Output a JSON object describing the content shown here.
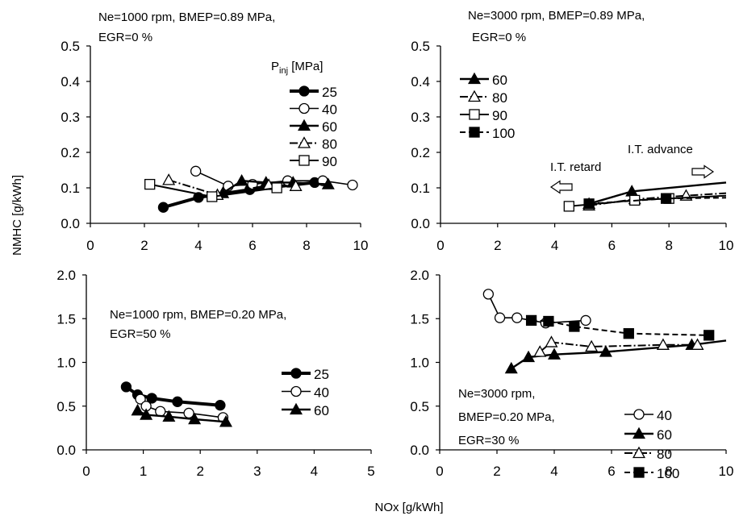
{
  "figure": {
    "ylabel": "NMHC [g/kWh]",
    "xlabel": "NOx [g/kWh]"
  },
  "chart_data": [
    {
      "type": "line",
      "annotations": [
        "Ne=1000 rpm, BMEP=0.89 MPa,",
        "EGR=0 %"
      ],
      "legend_title_main": "P",
      "legend_title_sub": "inj",
      "legend_title_unit": " [MPa]",
      "legend_position": "top-right",
      "xlim": [
        0,
        10
      ],
      "ylim": [
        0,
        0.5
      ],
      "xticks": [
        0,
        2,
        4,
        6,
        8,
        10
      ],
      "yticks": [
        0,
        0.1,
        0.2,
        0.3,
        0.4,
        0.5
      ],
      "xtick_labels": [
        "0",
        "2",
        "4",
        "6",
        "8",
        "10"
      ],
      "ytick_labels": [
        "0.0",
        "0.1",
        "0.2",
        "0.3",
        "0.4",
        "0.5"
      ],
      "series": [
        {
          "name": "25",
          "marker": "circle",
          "fill": "filled",
          "line": "solid",
          "width": 4,
          "x": [
            2.7,
            4.0,
            5.9,
            8.3
          ],
          "y": [
            0.045,
            0.073,
            0.095,
            0.115
          ]
        },
        {
          "name": "40",
          "marker": "circle",
          "fill": "open",
          "line": "solid",
          "width": 1.6,
          "x": [
            3.9,
            5.1,
            6.0,
            7.3,
            8.6,
            9.7
          ],
          "y": [
            0.147,
            0.105,
            0.11,
            0.12,
            0.12,
            0.108
          ]
        },
        {
          "name": "60",
          "marker": "triangle",
          "fill": "filled",
          "line": "solid",
          "width": 2.4,
          "x": [
            4.9,
            5.6,
            6.5,
            7.5,
            8.8
          ],
          "y": [
            0.085,
            0.12,
            0.115,
            0.115,
            0.11
          ]
        },
        {
          "name": "80",
          "marker": "triangle",
          "fill": "open",
          "line": "dashdot",
          "width": 2,
          "x": [
            2.9,
            4.7,
            6.6,
            7.6
          ],
          "y": [
            0.122,
            0.08,
            0.108,
            0.105
          ]
        },
        {
          "name": "90",
          "marker": "square",
          "fill": "open",
          "line": "solid",
          "width": 2,
          "x": [
            2.2,
            4.5,
            6.9
          ],
          "y": [
            0.11,
            0.075,
            0.1
          ]
        }
      ]
    },
    {
      "type": "line",
      "annotations": [
        "Ne=3000 rpm, BMEP=0.89 MPa,",
        "EGR=0 %",
        "I.T. retard",
        "I.T. advance"
      ],
      "legend_position": "top-left",
      "xlim": [
        0,
        10
      ],
      "ylim": [
        0,
        0.5
      ],
      "xticks": [
        0,
        2,
        4,
        6,
        8,
        10
      ],
      "yticks": [
        0,
        0.1,
        0.2,
        0.3,
        0.4,
        0.5
      ],
      "xtick_labels": [
        "0",
        "2",
        "4",
        "6",
        "8",
        "10"
      ],
      "ytick_labels": [
        "0.0",
        "0.1",
        "0.2",
        "0.3",
        "0.4",
        "0.5"
      ],
      "series": [
        {
          "name": "60",
          "marker": "triangle",
          "fill": "filled",
          "line": "solid",
          "width": 2.4,
          "x": [
            5.2,
            6.7,
            10.0
          ],
          "y": [
            0.055,
            0.09,
            0.115
          ]
        },
        {
          "name": "80",
          "marker": "triangle",
          "fill": "open",
          "line": "dashdot",
          "width": 2,
          "x": [
            5.2,
            6.8,
            8.6,
            10.0
          ],
          "y": [
            0.05,
            0.068,
            0.078,
            0.085
          ]
        },
        {
          "name": "90",
          "marker": "square",
          "fill": "open",
          "line": "solid",
          "width": 2,
          "x": [
            4.5,
            6.8,
            8.0,
            10.0
          ],
          "y": [
            0.048,
            0.065,
            0.07,
            0.078
          ]
        },
        {
          "name": "100",
          "marker": "square",
          "fill": "filled",
          "line": "dashed",
          "width": 2,
          "x": [
            5.2,
            7.9,
            10.0
          ],
          "y": [
            0.055,
            0.07,
            0.072
          ]
        }
      ]
    },
    {
      "type": "line",
      "annotations": [
        "Ne=1000 rpm, BMEP=0.20 MPa,",
        "EGR=50 %"
      ],
      "legend_position": "right",
      "xlim": [
        0,
        5
      ],
      "ylim": [
        0,
        2.0
      ],
      "xticks": [
        0,
        1,
        2,
        3,
        4,
        5
      ],
      "yticks": [
        0,
        0.5,
        1.0,
        1.5,
        2.0
      ],
      "xtick_labels": [
        "0",
        "1",
        "2",
        "3",
        "4",
        "5"
      ],
      "ytick_labels": [
        "0.0",
        "0.5",
        "1.0",
        "1.5",
        "2.0"
      ],
      "series": [
        {
          "name": "25",
          "marker": "circle",
          "fill": "filled",
          "line": "solid",
          "width": 4,
          "x": [
            0.7,
            0.9,
            1.15,
            1.6,
            2.35
          ],
          "y": [
            0.72,
            0.63,
            0.59,
            0.55,
            0.51
          ]
        },
        {
          "name": "40",
          "marker": "circle",
          "fill": "open",
          "line": "solid",
          "width": 1.6,
          "x": [
            0.95,
            1.05,
            1.3,
            1.8,
            2.4
          ],
          "y": [
            0.58,
            0.5,
            0.44,
            0.42,
            0.37
          ]
        },
        {
          "name": "60",
          "marker": "triangle",
          "fill": "filled",
          "line": "solid",
          "width": 2.4,
          "x": [
            0.9,
            1.05,
            1.45,
            1.9,
            2.45
          ],
          "y": [
            0.45,
            0.4,
            0.38,
            0.35,
            0.32
          ]
        }
      ]
    },
    {
      "type": "line",
      "annotations": [
        "Ne=3000 rpm,",
        "BMEP=0.20 MPa,",
        "EGR=30 %"
      ],
      "legend_position": "bottom-right",
      "xlim": [
        0,
        10
      ],
      "ylim": [
        0,
        2.0
      ],
      "xticks": [
        0,
        2,
        4,
        6,
        8,
        10
      ],
      "yticks": [
        0,
        0.5,
        1.0,
        1.5,
        2.0
      ],
      "xtick_labels": [
        "0",
        "2",
        "4",
        "6",
        "8",
        "10"
      ],
      "ytick_labels": [
        "0.0",
        "0.5",
        "1.0",
        "1.5",
        "2.0"
      ],
      "series": [
        {
          "name": "40",
          "marker": "circle",
          "fill": "open",
          "line": "solid",
          "width": 1.6,
          "x": [
            1.7,
            2.1,
            2.7,
            3.7,
            5.1
          ],
          "y": [
            1.78,
            1.51,
            1.51,
            1.45,
            1.48
          ]
        },
        {
          "name": "60",
          "marker": "triangle",
          "fill": "filled",
          "line": "solid",
          "width": 2.4,
          "x": [
            2.5,
            3.1,
            4.0,
            5.8,
            8.8,
            10.0
          ],
          "y": [
            0.93,
            1.06,
            1.09,
            1.12,
            1.2,
            1.25
          ]
        },
        {
          "name": "80",
          "marker": "triangle",
          "fill": "open",
          "line": "dashdot",
          "width": 2,
          "x": [
            3.5,
            3.9,
            5.3,
            7.8,
            9.0
          ],
          "y": [
            1.12,
            1.23,
            1.18,
            1.2,
            1.2
          ]
        },
        {
          "name": "100",
          "marker": "square",
          "fill": "filled",
          "line": "dashed",
          "width": 2,
          "x": [
            3.2,
            3.8,
            4.7,
            6.6,
            9.4
          ],
          "y": [
            1.48,
            1.47,
            1.41,
            1.33,
            1.31
          ]
        }
      ]
    }
  ]
}
